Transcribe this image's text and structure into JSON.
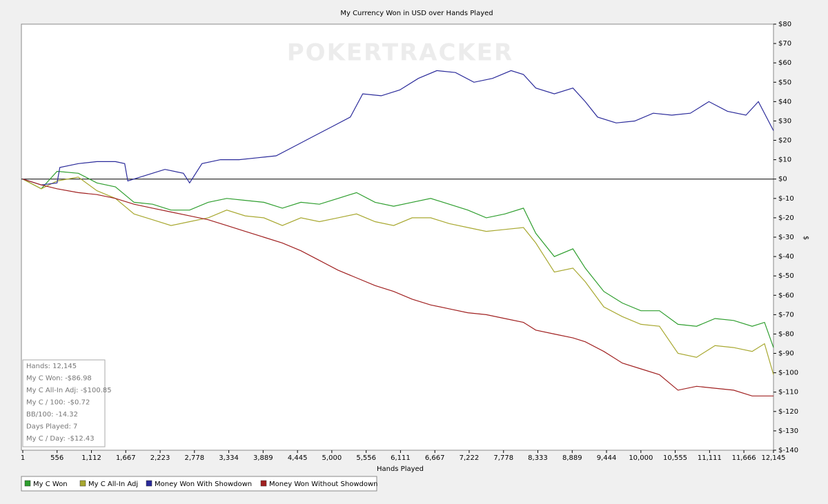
{
  "chart_data": {
    "type": "line",
    "title": "My Currency Won in USD over Hands Played",
    "watermark": "POKERTRACKER",
    "xlabel": "Hands Played",
    "ylabel": "$",
    "xlim": [
      1,
      12145
    ],
    "xticks": [
      1,
      556,
      {
        "value": 1112,
        "label": "1,112"
      },
      {
        "value": 1667,
        "label": "1,667"
      },
      {
        "value": 2223,
        "label": "2,223"
      },
      {
        "value": 2778,
        "label": "2,778"
      },
      {
        "value": 3334,
        "label": "3,334"
      },
      {
        "value": 3889,
        "label": "3,889"
      },
      {
        "value": 4445,
        "label": "4,445"
      },
      {
        "value": 5000,
        "label": "5,000"
      },
      {
        "value": 5556,
        "label": "5,556"
      },
      {
        "value": 6111,
        "label": "6,111"
      },
      {
        "value": 6667,
        "label": "6,667"
      },
      {
        "value": 7222,
        "label": "7,222"
      },
      {
        "value": 7778,
        "label": "7,778"
      },
      {
        "value": 8333,
        "label": "8,333"
      },
      {
        "value": 8889,
        "label": "8,889"
      },
      {
        "value": 9444,
        "label": "9,444"
      },
      {
        "value": 10000,
        "label": "10,000"
      },
      {
        "value": 10555,
        "label": "10,555"
      },
      {
        "value": 11111,
        "label": "11,111"
      },
      {
        "value": 11666,
        "label": "11,666"
      },
      {
        "value": 12145,
        "label": "12,145"
      }
    ],
    "ylim": [
      -140,
      80
    ],
    "yticks": [
      {
        "value": 80,
        "label": "$80"
      },
      {
        "value": 70,
        "label": "$70"
      },
      {
        "value": 60,
        "label": "$60"
      },
      {
        "value": 50,
        "label": "$50"
      },
      {
        "value": 40,
        "label": "$40"
      },
      {
        "value": 30,
        "label": "$30"
      },
      {
        "value": 20,
        "label": "$20"
      },
      {
        "value": 10,
        "label": "$10"
      },
      {
        "value": 0,
        "label": "$0"
      },
      {
        "value": -10,
        "label": "$-10"
      },
      {
        "value": -20,
        "label": "$-20"
      },
      {
        "value": -30,
        "label": "$-30"
      },
      {
        "value": -40,
        "label": "$-40"
      },
      {
        "value": -50,
        "label": "$-50"
      },
      {
        "value": -60,
        "label": "$-60"
      },
      {
        "value": -70,
        "label": "$-70"
      },
      {
        "value": -80,
        "label": "$-80"
      },
      {
        "value": -90,
        "label": "$-90"
      },
      {
        "value": -100,
        "label": "$-100"
      },
      {
        "value": -110,
        "label": "$-110"
      },
      {
        "value": -120,
        "label": "$-120"
      },
      {
        "value": -130,
        "label": "$-130"
      },
      {
        "value": -140,
        "label": "$-140"
      }
    ],
    "grid": false,
    "stats": [
      "Hands: 12,145",
      "My C Won: -$86.98",
      "My C All-In Adj: -$100.85",
      "My C / 100: -$0.72",
      "BB/100: -14.32",
      "Days Played: 7",
      "My C / Day: -$12.43"
    ],
    "series": [
      {
        "name": "My C Won",
        "color": "#2e9e2e",
        "x": [
          1,
          300,
          556,
          900,
          1200,
          1500,
          1800,
          2100,
          2400,
          2700,
          3000,
          3300,
          3600,
          3900,
          4200,
          4500,
          4800,
          5100,
          5400,
          5700,
          6000,
          6300,
          6600,
          6900,
          7200,
          7500,
          7800,
          8100,
          8300,
          8600,
          8900,
          9100,
          9400,
          9700,
          10000,
          10300,
          10600,
          10900,
          11200,
          11500,
          11800,
          12000,
          12145
        ],
        "values": [
          0,
          -5,
          4,
          3,
          -2,
          -4,
          -12,
          -13,
          -16,
          -16,
          -12,
          -10,
          -11,
          -12,
          -15,
          -12,
          -13,
          -10,
          -7,
          -12,
          -14,
          -12,
          -10,
          -13,
          -16,
          -20,
          -18,
          -15,
          -28,
          -40,
          -36,
          -46,
          -58,
          -64,
          -68,
          -68,
          -75,
          -76,
          -72,
          -73,
          -76,
          -74,
          -87
        ]
      },
      {
        "name": "My C All-In Adj",
        "color": "#a8a830",
        "x": [
          1,
          300,
          556,
          900,
          1200,
          1500,
          1800,
          2100,
          2400,
          2700,
          3000,
          3300,
          3600,
          3900,
          4200,
          4500,
          4800,
          5100,
          5400,
          5700,
          6000,
          6300,
          6600,
          6900,
          7200,
          7500,
          7800,
          8100,
          8300,
          8600,
          8900,
          9100,
          9400,
          9700,
          10000,
          10300,
          10600,
          10900,
          11200,
          11500,
          11800,
          12000,
          12145
        ],
        "values": [
          0,
          -5,
          -1,
          1,
          -6,
          -10,
          -18,
          -21,
          -24,
          -22,
          -20,
          -16,
          -19,
          -20,
          -24,
          -20,
          -22,
          -20,
          -18,
          -22,
          -24,
          -20,
          -20,
          -23,
          -25,
          -27,
          -26,
          -25,
          -33,
          -48,
          -46,
          -53,
          -66,
          -71,
          -75,
          -76,
          -90,
          -92,
          -86,
          -87,
          -89,
          -85,
          -101
        ]
      },
      {
        "name": "Money Won With Showdown",
        "color": "#2a2a9a",
        "x": [
          1,
          300,
          556,
          600,
          900,
          1200,
          1500,
          1650,
          1700,
          2000,
          2300,
          2600,
          2700,
          2900,
          3200,
          3500,
          3800,
          4100,
          4400,
          4700,
          5000,
          5300,
          5500,
          5800,
          6100,
          6400,
          6700,
          7000,
          7300,
          7600,
          7900,
          8100,
          8300,
          8600,
          8900,
          9100,
          9300,
          9600,
          9900,
          10200,
          10500,
          10800,
          11100,
          11400,
          11700,
          11900,
          12145
        ],
        "values": [
          0,
          -3,
          -2,
          6,
          8,
          9,
          9,
          8,
          -1,
          2,
          5,
          3,
          -2,
          8,
          10,
          10,
          11,
          12,
          17,
          22,
          27,
          32,
          44,
          43,
          46,
          52,
          56,
          55,
          50,
          52,
          56,
          54,
          47,
          44,
          47,
          40,
          32,
          29,
          30,
          34,
          33,
          34,
          40,
          35,
          33,
          40,
          25
        ]
      },
      {
        "name": "Money Won Without Showdown",
        "color": "#a02020",
        "x": [
          1,
          300,
          556,
          900,
          1200,
          1500,
          1800,
          2100,
          2400,
          2700,
          3000,
          3300,
          3600,
          3900,
          4200,
          4500,
          4800,
          5100,
          5400,
          5700,
          6000,
          6300,
          6600,
          6900,
          7200,
          7500,
          7800,
          8100,
          8300,
          8600,
          8900,
          9100,
          9400,
          9700,
          10000,
          10300,
          10600,
          10900,
          11200,
          11500,
          11800,
          12000,
          12145
        ],
        "values": [
          0,
          -3,
          -5,
          -7,
          -8,
          -10,
          -13,
          -15,
          -17,
          -19,
          -21,
          -24,
          -27,
          -30,
          -33,
          -37,
          -42,
          -47,
          -51,
          -55,
          -58,
          -62,
          -65,
          -67,
          -69,
          -70,
          -72,
          -74,
          -78,
          -80,
          -82,
          -84,
          -89,
          -95,
          -98,
          -101,
          -109,
          -107,
          -108,
          -109,
          -112,
          -112,
          -112
        ]
      }
    ]
  }
}
